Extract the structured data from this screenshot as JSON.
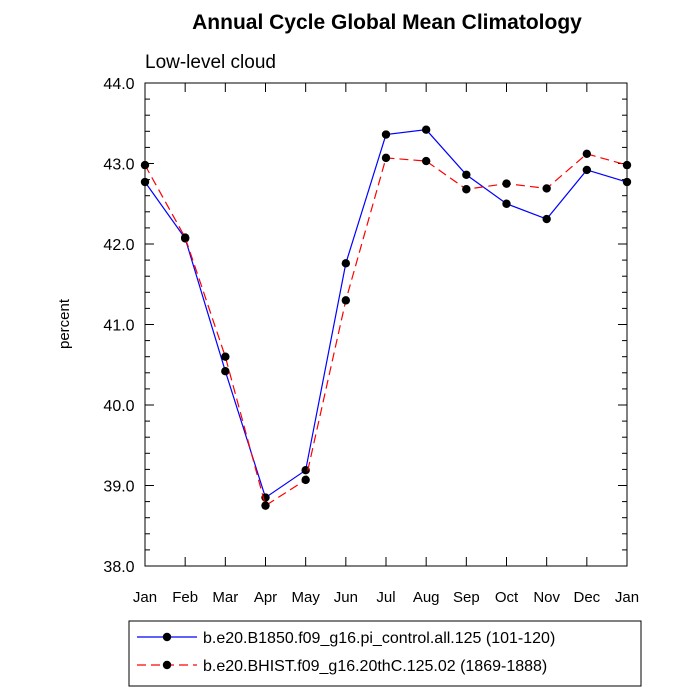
{
  "chart_data": {
    "type": "line",
    "title": "Annual Cycle Global Mean Climatology",
    "subtitle": "Low-level cloud",
    "xlabel": "",
    "ylabel": "percent",
    "categories": [
      "Jan",
      "Feb",
      "Mar",
      "Apr",
      "May",
      "Jun",
      "Jul",
      "Aug",
      "Sep",
      "Oct",
      "Nov",
      "Dec",
      "Jan"
    ],
    "ylim": [
      38.0,
      44.0
    ],
    "yticks": [
      "38.0",
      "39.0",
      "40.0",
      "41.0",
      "42.0",
      "43.0",
      "44.0"
    ],
    "grid": false,
    "legend_position": "bottom",
    "series": [
      {
        "name": "b.e20.B1850.f09_g16.pi_control.all.125 (101-120)",
        "color": "#0000ff",
        "dash": "solid",
        "values": [
          42.77,
          42.07,
          40.42,
          38.85,
          39.19,
          41.76,
          43.36,
          43.42,
          42.86,
          42.5,
          42.31,
          42.92,
          42.77
        ]
      },
      {
        "name": "b.e20.BHIST.f09_g16.20thC.125.02 (1869-1888)",
        "color": "#ff0000",
        "dash": "dashed",
        "values": [
          42.98,
          42.08,
          40.6,
          38.75,
          39.07,
          41.3,
          43.07,
          43.03,
          42.68,
          42.75,
          42.69,
          43.12,
          42.98
        ]
      }
    ]
  }
}
